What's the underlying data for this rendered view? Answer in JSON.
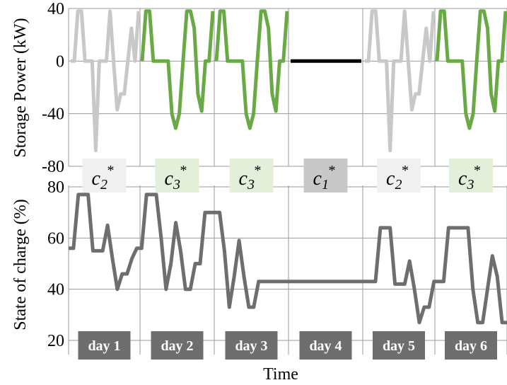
{
  "chart_data": [
    {
      "type": "line",
      "ylabel": "Storage Power (kW)",
      "ylim": [
        -80,
        40
      ],
      "yticks": [
        40,
        0,
        -40,
        -80
      ],
      "grid": true,
      "days": [
        "day 1",
        "day 2",
        "day 3",
        "day 4",
        "day 5",
        "day 6"
      ],
      "series": [
        {
          "day": 1,
          "cluster": "c2",
          "values": [
            0,
            0,
            38,
            38,
            0,
            0,
            0,
            -68,
            0,
            0,
            0,
            38,
            0,
            -37,
            -25,
            -25,
            0,
            25,
            0,
            38
          ]
        },
        {
          "day": 2,
          "cluster": "c3",
          "values": [
            0,
            38,
            38,
            0,
            0,
            0,
            0,
            0,
            -40,
            -51,
            -40,
            0,
            38,
            38,
            25,
            -25,
            -38,
            0,
            0,
            38
          ]
        },
        {
          "day": 3,
          "cluster": "c3",
          "values": [
            0,
            38,
            38,
            0,
            0,
            0,
            0,
            0,
            -40,
            -51,
            -40,
            0,
            38,
            38,
            25,
            -25,
            -38,
            0,
            0,
            38
          ]
        },
        {
          "day": 4,
          "cluster": "c1",
          "values": [
            0,
            0,
            0,
            0,
            0,
            0,
            0,
            0,
            0,
            0,
            0,
            0,
            0,
            0,
            0,
            0,
            0,
            0,
            0,
            0
          ]
        },
        {
          "day": 5,
          "cluster": "c2",
          "values": [
            0,
            0,
            38,
            38,
            0,
            0,
            0,
            -68,
            0,
            0,
            0,
            38,
            0,
            -37,
            -25,
            -25,
            0,
            25,
            0,
            38
          ]
        },
        {
          "day": 6,
          "cluster": "c3",
          "values": [
            0,
            38,
            38,
            0,
            0,
            0,
            0,
            0,
            -40,
            -51,
            -40,
            0,
            38,
            38,
            25,
            -25,
            -38,
            0,
            0,
            38
          ]
        }
      ],
      "colors": {
        "c1": "#000000",
        "c2": "#c8c8c8",
        "c3": "#6aaa46"
      }
    },
    {
      "type": "line",
      "ylabel": "State of charge (%)",
      "xlabel": "Time",
      "ylim": [
        20,
        80
      ],
      "yticks": [
        80,
        60,
        40,
        20
      ],
      "grid": true,
      "series": [
        {
          "name": "",
          "color": "#6e6e6e",
          "values": [
            56,
            56,
            77,
            77,
            77,
            55,
            55,
            55,
            65,
            52,
            40,
            46,
            46,
            52,
            56,
            56,
            77,
            77,
            77,
            60,
            40,
            50,
            66,
            55,
            40,
            40,
            50,
            50,
            70,
            70,
            70,
            70,
            55,
            33,
            45,
            59,
            45,
            33,
            33,
            43,
            43,
            43,
            43,
            43,
            43,
            43,
            43,
            43,
            43,
            43,
            43,
            43,
            43,
            43,
            43,
            43,
            43,
            43,
            43,
            43,
            43,
            43,
            43,
            43,
            64,
            64,
            64,
            42,
            42,
            42,
            51,
            40,
            27,
            33,
            33,
            43,
            43,
            43,
            64,
            64,
            64,
            64,
            64,
            40,
            27,
            27,
            40,
            53,
            45,
            27,
            27
          ]
        }
      ]
    }
  ],
  "badges": [
    {
      "base": "c",
      "sub": "2",
      "sup": "*",
      "bg": "#f0f0f0"
    },
    {
      "base": "c",
      "sub": "3",
      "sup": "*",
      "bg": "#e3efd9"
    },
    {
      "base": "c",
      "sub": "3",
      "sup": "*",
      "bg": "#e3efd9"
    },
    {
      "base": "c",
      "sub": "1",
      "sup": "*",
      "bg": "#c8c8c8"
    },
    {
      "base": "c",
      "sub": "2",
      "sup": "*",
      "bg": "#f0f0f0"
    },
    {
      "base": "c",
      "sub": "3",
      "sup": "*",
      "bg": "#e3efd9"
    }
  ],
  "day_label_bg": "#6e6e6e"
}
